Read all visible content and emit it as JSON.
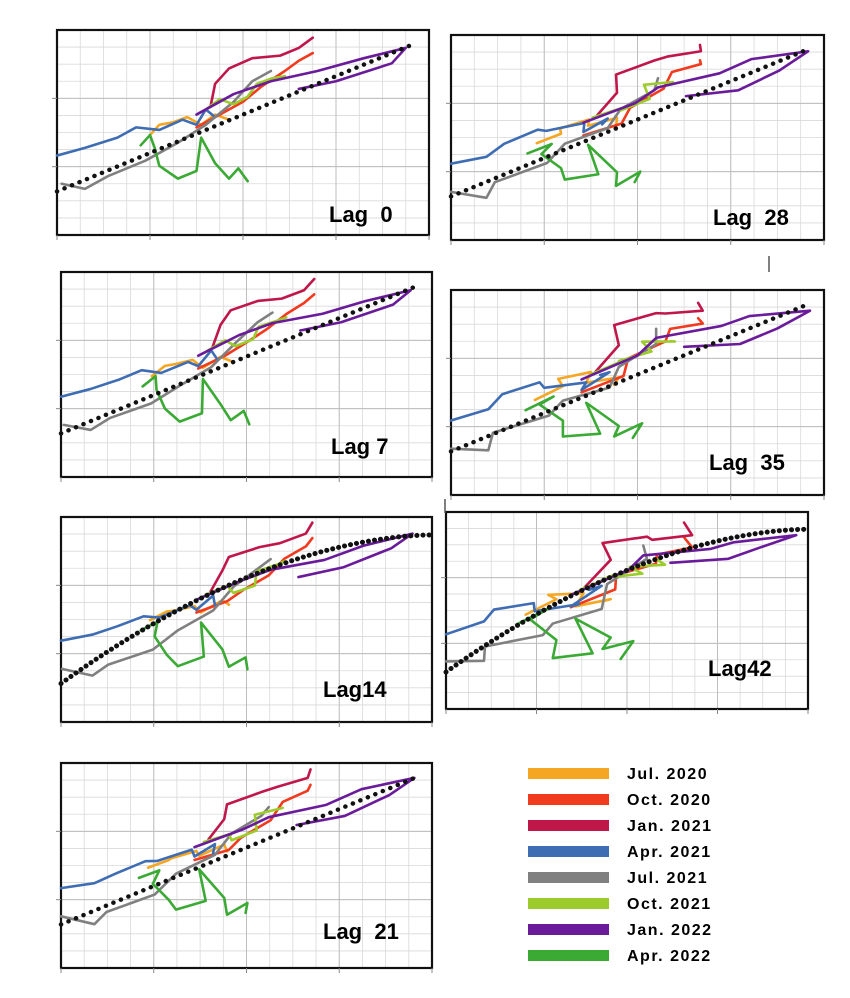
{
  "chart_data": {
    "type": "line",
    "description_of_axes": "unlabeled axes; 4x4 major grid per panel",
    "series_legend": [
      {
        "name": "Jul. 2020",
        "color": "#f5a623"
      },
      {
        "name": "Oct. 2020",
        "color": "#f23a1f"
      },
      {
        "name": "Jan. 2021",
        "color": "#c0174a"
      },
      {
        "name": "Apr. 2021",
        "color": "#3f6db3"
      },
      {
        "name": "Jul. 2021",
        "color": "#808080"
      },
      {
        "name": "Oct. 2021",
        "color": "#9ccc2c"
      },
      {
        "name": "Jan. 2022",
        "color": "#6a1b9a"
      },
      {
        "name": "Apr. 2022",
        "color": "#3aaa35"
      }
    ],
    "panels": [
      {
        "label": "Lag  0",
        "trend": "linear"
      },
      {
        "label": "Lag 7",
        "trend": "linear"
      },
      {
        "label": "Lag14",
        "trend": "curved"
      },
      {
        "label": "Lag  21",
        "trend": "linear"
      },
      {
        "label": "Lag  28",
        "trend": "linear"
      },
      {
        "label": "Lag  35",
        "trend": "linear"
      },
      {
        "label": "Lag42",
        "trend": "curved"
      }
    ],
    "xlim": [
      0,
      4
    ],
    "ylim": [
      0,
      4
    ],
    "series_data": {
      "Jul. 2020": [
        [
          1.0,
          1.95
        ],
        [
          1.1,
          2.15
        ],
        [
          1.25,
          2.2
        ],
        [
          1.4,
          2.3
        ],
        [
          1.55,
          2.15
        ],
        [
          1.7,
          2.35
        ],
        [
          1.85,
          2.25
        ]
      ],
      "Oct. 2020": [
        [
          1.5,
          2.1
        ],
        [
          1.75,
          2.35
        ],
        [
          2.0,
          2.6
        ],
        [
          2.2,
          2.9
        ],
        [
          2.45,
          3.2
        ],
        [
          2.6,
          3.4
        ],
        [
          2.75,
          3.55
        ]
      ],
      "Jan. 2021": [
        [
          1.65,
          2.5
        ],
        [
          1.7,
          2.95
        ],
        [
          1.85,
          3.25
        ],
        [
          2.1,
          3.45
        ],
        [
          2.4,
          3.5
        ],
        [
          2.6,
          3.65
        ],
        [
          2.75,
          3.85
        ]
      ],
      "Apr. 2021": [
        [
          0.0,
          1.55
        ],
        [
          0.3,
          1.7
        ],
        [
          0.65,
          1.9
        ],
        [
          0.85,
          2.1
        ],
        [
          1.1,
          2.05
        ],
        [
          1.35,
          2.25
        ],
        [
          1.5,
          2.15
        ],
        [
          1.6,
          2.45
        ],
        [
          1.7,
          2.3
        ]
      ],
      "Jul. 2021": [
        [
          0.05,
          1.0
        ],
        [
          0.3,
          0.9
        ],
        [
          0.55,
          1.15
        ],
        [
          0.95,
          1.45
        ],
        [
          1.3,
          1.8
        ],
        [
          1.6,
          2.15
        ],
        [
          1.9,
          2.6
        ],
        [
          2.1,
          3.0
        ],
        [
          2.3,
          3.2
        ]
      ],
      "Oct. 2021": [
        [
          1.6,
          2.45
        ],
        [
          1.75,
          2.65
        ],
        [
          1.9,
          2.55
        ],
        [
          2.05,
          2.7
        ],
        [
          2.15,
          2.95
        ],
        [
          2.3,
          3.05
        ],
        [
          2.45,
          3.1
        ]
      ],
      "Jan. 2022": [
        [
          1.5,
          2.35
        ],
        [
          1.9,
          2.75
        ],
        [
          2.3,
          3.0
        ],
        [
          2.8,
          3.2
        ],
        [
          3.3,
          3.45
        ],
        [
          3.75,
          3.65
        ],
        [
          3.6,
          3.35
        ],
        [
          3.0,
          3.0
        ],
        [
          2.6,
          2.85
        ]
      ],
      "Apr. 2022": [
        [
          0.9,
          1.75
        ],
        [
          1.0,
          1.95
        ],
        [
          1.05,
          1.7
        ],
        [
          1.1,
          1.35
        ],
        [
          1.3,
          1.1
        ],
        [
          1.5,
          1.25
        ],
        [
          1.55,
          1.9
        ],
        [
          1.7,
          1.4
        ],
        [
          1.85,
          1.1
        ],
        [
          1.95,
          1.3
        ],
        [
          2.05,
          1.05
        ]
      ]
    }
  }
}
